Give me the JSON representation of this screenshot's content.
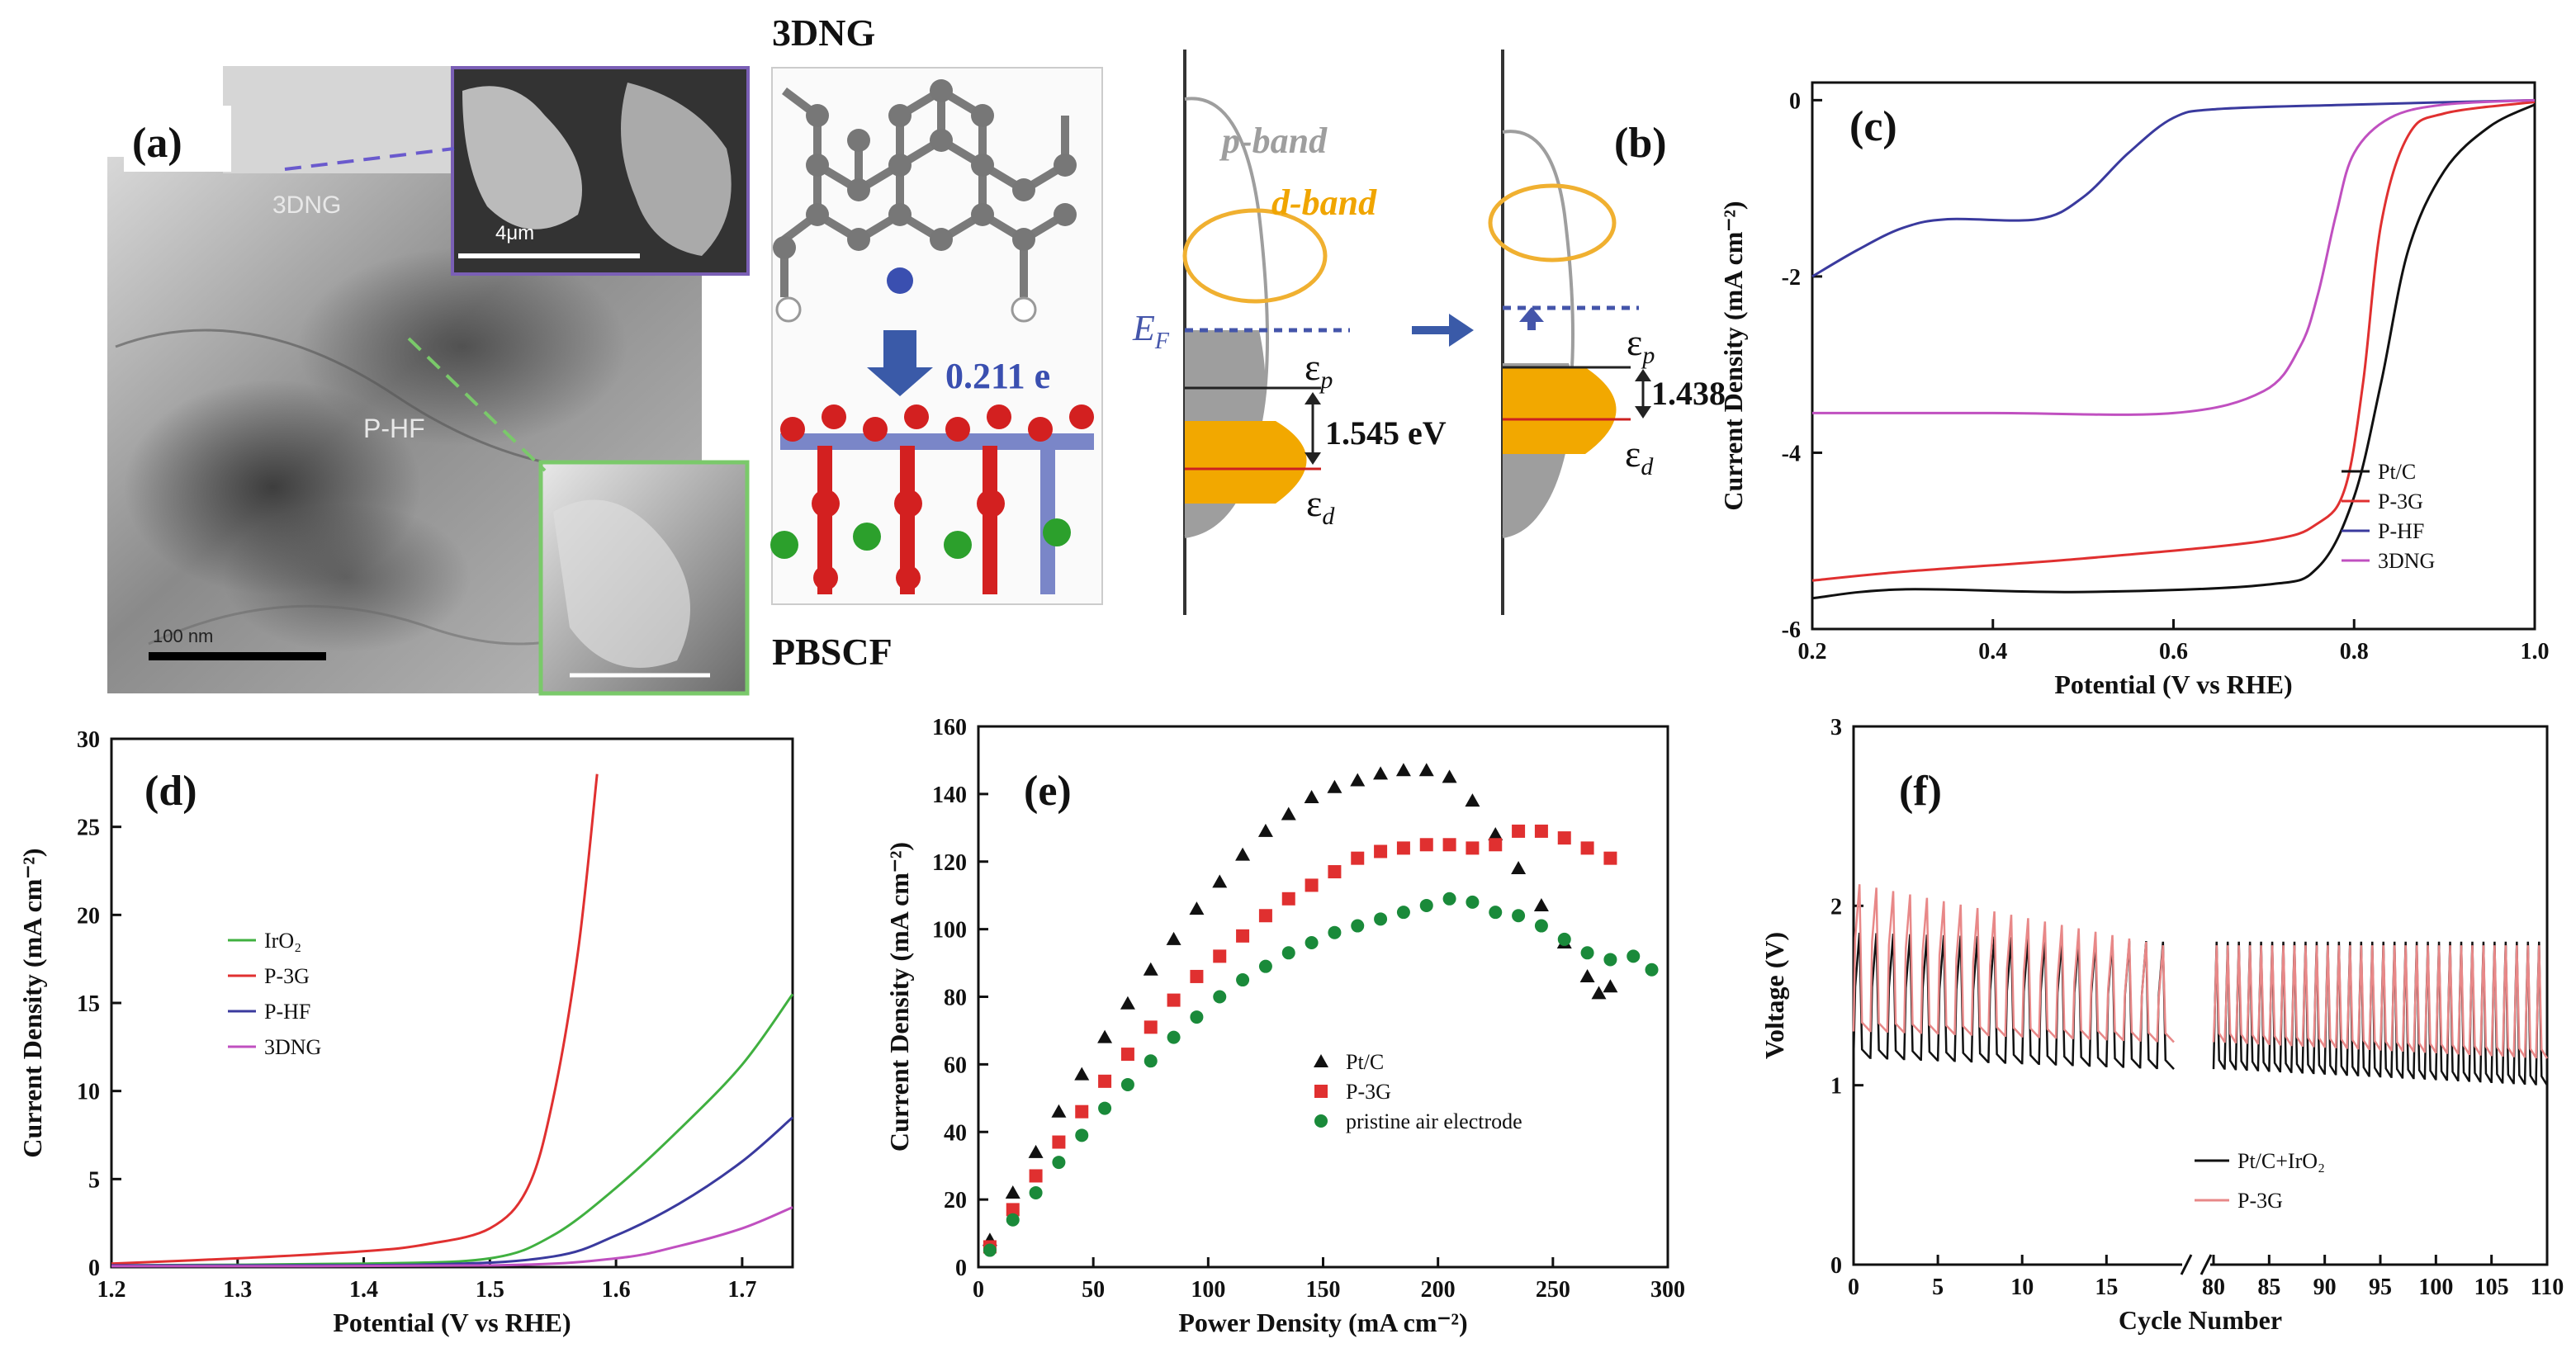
{
  "panel_a": {
    "label": "(a)",
    "top_title": "3DNG",
    "bottom_title": "PBSCF",
    "tem_labels": [
      "3DNG",
      "P-HF"
    ],
    "inset_scale": "4μm",
    "main_scale": "100 nm",
    "charge_transfer": "0.211 e"
  },
  "panel_b": {
    "label": "(b)",
    "p_band": "p-band",
    "d_band": "d-band",
    "fermi": "E",
    "fermi_sub": "F",
    "eps": "ε",
    "sub_p": "p",
    "sub_d": "d",
    "gap_left": "1.545 eV",
    "gap_right": "1.438",
    "colors": {
      "d_band": "#f0a500",
      "fermi": "#4455aa",
      "p_band": "#9e9e9e"
    }
  },
  "chart_data": [
    {
      "id": "c",
      "type": "line",
      "panel_label": "(c)",
      "xlabel": "Potential (V vs RHE)",
      "ylabel": "Current Density (mA cm⁻²)",
      "xlim": [
        0.2,
        1.0
      ],
      "ylim": [
        -6,
        0.2
      ],
      "xticks": [
        "0.2",
        "0.4",
        "0.6",
        "0.8",
        "1.0"
      ],
      "yticks": [
        "-6",
        "-4",
        "-2",
        "0"
      ],
      "legend": [
        "Pt/C",
        "P-3G",
        "P-HF",
        "3DNG"
      ],
      "series": [
        {
          "name": "Pt/C",
          "color": "#111111",
          "x": [
            0.2,
            0.3,
            0.5,
            0.7,
            0.76,
            0.8,
            0.83,
            0.86,
            0.9,
            0.95,
            1.0
          ],
          "y": [
            -5.65,
            -5.55,
            -5.58,
            -5.5,
            -5.3,
            -4.5,
            -3.2,
            -1.7,
            -0.8,
            -0.3,
            -0.05
          ]
        },
        {
          "name": "P-3G",
          "color": "#e03030",
          "x": [
            0.2,
            0.3,
            0.5,
            0.7,
            0.76,
            0.79,
            0.81,
            0.83,
            0.86,
            0.9,
            1.0
          ],
          "y": [
            -5.45,
            -5.35,
            -5.2,
            -5.0,
            -4.8,
            -4.4,
            -3.2,
            -1.4,
            -0.4,
            -0.15,
            -0.02
          ]
        },
        {
          "name": "P-HF",
          "color": "#3a3a9e",
          "x": [
            0.2,
            0.25,
            0.3,
            0.35,
            0.45,
            0.5,
            0.55,
            0.6,
            0.65,
            0.8,
            1.0
          ],
          "y": [
            -2.0,
            -1.7,
            -1.45,
            -1.35,
            -1.35,
            -1.1,
            -0.6,
            -0.2,
            -0.1,
            -0.05,
            0.0
          ]
        },
        {
          "name": "3DNG",
          "color": "#c050c0",
          "x": [
            0.2,
            0.4,
            0.6,
            0.7,
            0.74,
            0.76,
            0.78,
            0.8,
            0.84,
            0.9,
            1.0
          ],
          "y": [
            -3.55,
            -3.55,
            -3.55,
            -3.3,
            -2.8,
            -2.2,
            -1.3,
            -0.6,
            -0.2,
            -0.05,
            0.0
          ]
        }
      ]
    },
    {
      "id": "d",
      "type": "line",
      "panel_label": "(d)",
      "xlabel": "Potential (V vs RHE)",
      "ylabel": "Current Density (mA cm⁻²)",
      "xlim": [
        1.2,
        1.74
      ],
      "ylim": [
        0,
        30
      ],
      "xticks": [
        "1.2",
        "1.3",
        "1.4",
        "1.5",
        "1.6",
        "1.7"
      ],
      "yticks": [
        "0",
        "5",
        "10",
        "15",
        "20",
        "25",
        "30"
      ],
      "legend": [
        "IrO₂",
        "P-3G",
        "P-HF",
        "3DNG"
      ],
      "series": [
        {
          "name": "IrO₂",
          "color": "#40b040",
          "x": [
            1.2,
            1.4,
            1.5,
            1.55,
            1.6,
            1.65,
            1.7,
            1.74
          ],
          "y": [
            0.1,
            0.2,
            0.5,
            1.8,
            4.5,
            7.8,
            11.5,
            15.5
          ]
        },
        {
          "name": "P-3G",
          "color": "#e03030",
          "x": [
            1.2,
            1.3,
            1.4,
            1.45,
            1.5,
            1.53,
            1.55,
            1.57,
            1.585
          ],
          "y": [
            0.2,
            0.5,
            0.9,
            1.3,
            2.2,
            4.5,
            9.5,
            18.0,
            28.0
          ]
        },
        {
          "name": "P-HF",
          "color": "#3a3a9e",
          "x": [
            1.2,
            1.45,
            1.55,
            1.6,
            1.65,
            1.7,
            1.74
          ],
          "y": [
            0.1,
            0.15,
            0.6,
            1.8,
            3.6,
            6.0,
            8.5
          ]
        },
        {
          "name": "3DNG",
          "color": "#c050c0",
          "x": [
            1.2,
            1.5,
            1.6,
            1.65,
            1.7,
            1.74
          ],
          "y": [
            0.05,
            0.1,
            0.5,
            1.2,
            2.2,
            3.4
          ]
        }
      ]
    },
    {
      "id": "e",
      "type": "scatter",
      "panel_label": "(e)",
      "xlabel": "Power Density (mA cm⁻²)",
      "ylabel": "Current Density (mA cm⁻²)",
      "xlim": [
        0,
        300
      ],
      "ylim": [
        0,
        160
      ],
      "xticks": [
        "0",
        "50",
        "100",
        "150",
        "200",
        "250",
        "300"
      ],
      "yticks": [
        "0",
        "20",
        "40",
        "60",
        "80",
        "100",
        "120",
        "140",
        "160"
      ],
      "legend": [
        "Pt/C",
        "P-3G",
        "pristine air electrode"
      ],
      "series": [
        {
          "name": "Pt/C",
          "color": "#111111",
          "marker": "triangle",
          "x": [
            5,
            15,
            25,
            35,
            45,
            55,
            65,
            75,
            85,
            95,
            105,
            115,
            125,
            135,
            145,
            155,
            165,
            175,
            185,
            195,
            205,
            215,
            225,
            235,
            245,
            255,
            265,
            270,
            275
          ],
          "y": [
            8,
            22,
            34,
            46,
            57,
            68,
            78,
            88,
            97,
            106,
            114,
            122,
            129,
            134,
            139,
            142,
            144,
            146,
            147,
            147,
            145,
            138,
            128,
            118,
            107,
            96,
            86,
            81,
            83
          ]
        },
        {
          "name": "P-3G",
          "color": "#e03030",
          "marker": "square",
          "x": [
            5,
            15,
            25,
            35,
            45,
            55,
            65,
            75,
            85,
            95,
            105,
            115,
            125,
            135,
            145,
            155,
            165,
            175,
            185,
            195,
            205,
            215,
            225,
            235,
            245,
            255,
            265,
            275
          ],
          "y": [
            6,
            17,
            27,
            37,
            46,
            55,
            63,
            71,
            79,
            86,
            92,
            98,
            104,
            109,
            113,
            117,
            121,
            123,
            124,
            125,
            125,
            124,
            125,
            129,
            129,
            127,
            124,
            121
          ]
        },
        {
          "name": "pristine air electrode",
          "color": "#1a8a3a",
          "marker": "circle",
          "x": [
            5,
            15,
            25,
            35,
            45,
            55,
            65,
            75,
            85,
            95,
            105,
            115,
            125,
            135,
            145,
            155,
            165,
            175,
            185,
            195,
            205,
            215,
            225,
            235,
            245,
            255,
            265,
            275,
            285,
            293
          ],
          "y": [
            5,
            14,
            22,
            31,
            39,
            47,
            54,
            61,
            68,
            74,
            80,
            85,
            89,
            93,
            96,
            99,
            101,
            103,
            105,
            107,
            109,
            108,
            105,
            104,
            101,
            97,
            93,
            91,
            92,
            88
          ]
        }
      ]
    },
    {
      "id": "f",
      "type": "line",
      "panel_label": "(f)",
      "xlabel": "Cycle Number",
      "ylabel": "Voltage (V)",
      "ylim": [
        0,
        3
      ],
      "yticks": [
        "0",
        "1",
        "2",
        "3"
      ],
      "xticks": [
        "0",
        "5",
        "10",
        "15",
        "80",
        "85",
        "90",
        "95",
        "100",
        "105",
        "110"
      ],
      "segments": [
        [
          0,
          19
        ],
        [
          80,
          110
        ]
      ],
      "legend": [
        "Pt/C+IrO₂",
        "P-3G"
      ],
      "series": [
        {
          "name": "Pt/C+IrO₂",
          "color": "#111111",
          "charge_start": 1.85,
          "charge_end": 1.8,
          "discharge_start": 1.15,
          "discharge_end": 1.0
        },
        {
          "name": "P-3G",
          "color": "#e88888",
          "charge_start": 2.12,
          "charge_end": 1.78,
          "discharge_start": 1.3,
          "discharge_end": 1.15
        }
      ]
    }
  ]
}
